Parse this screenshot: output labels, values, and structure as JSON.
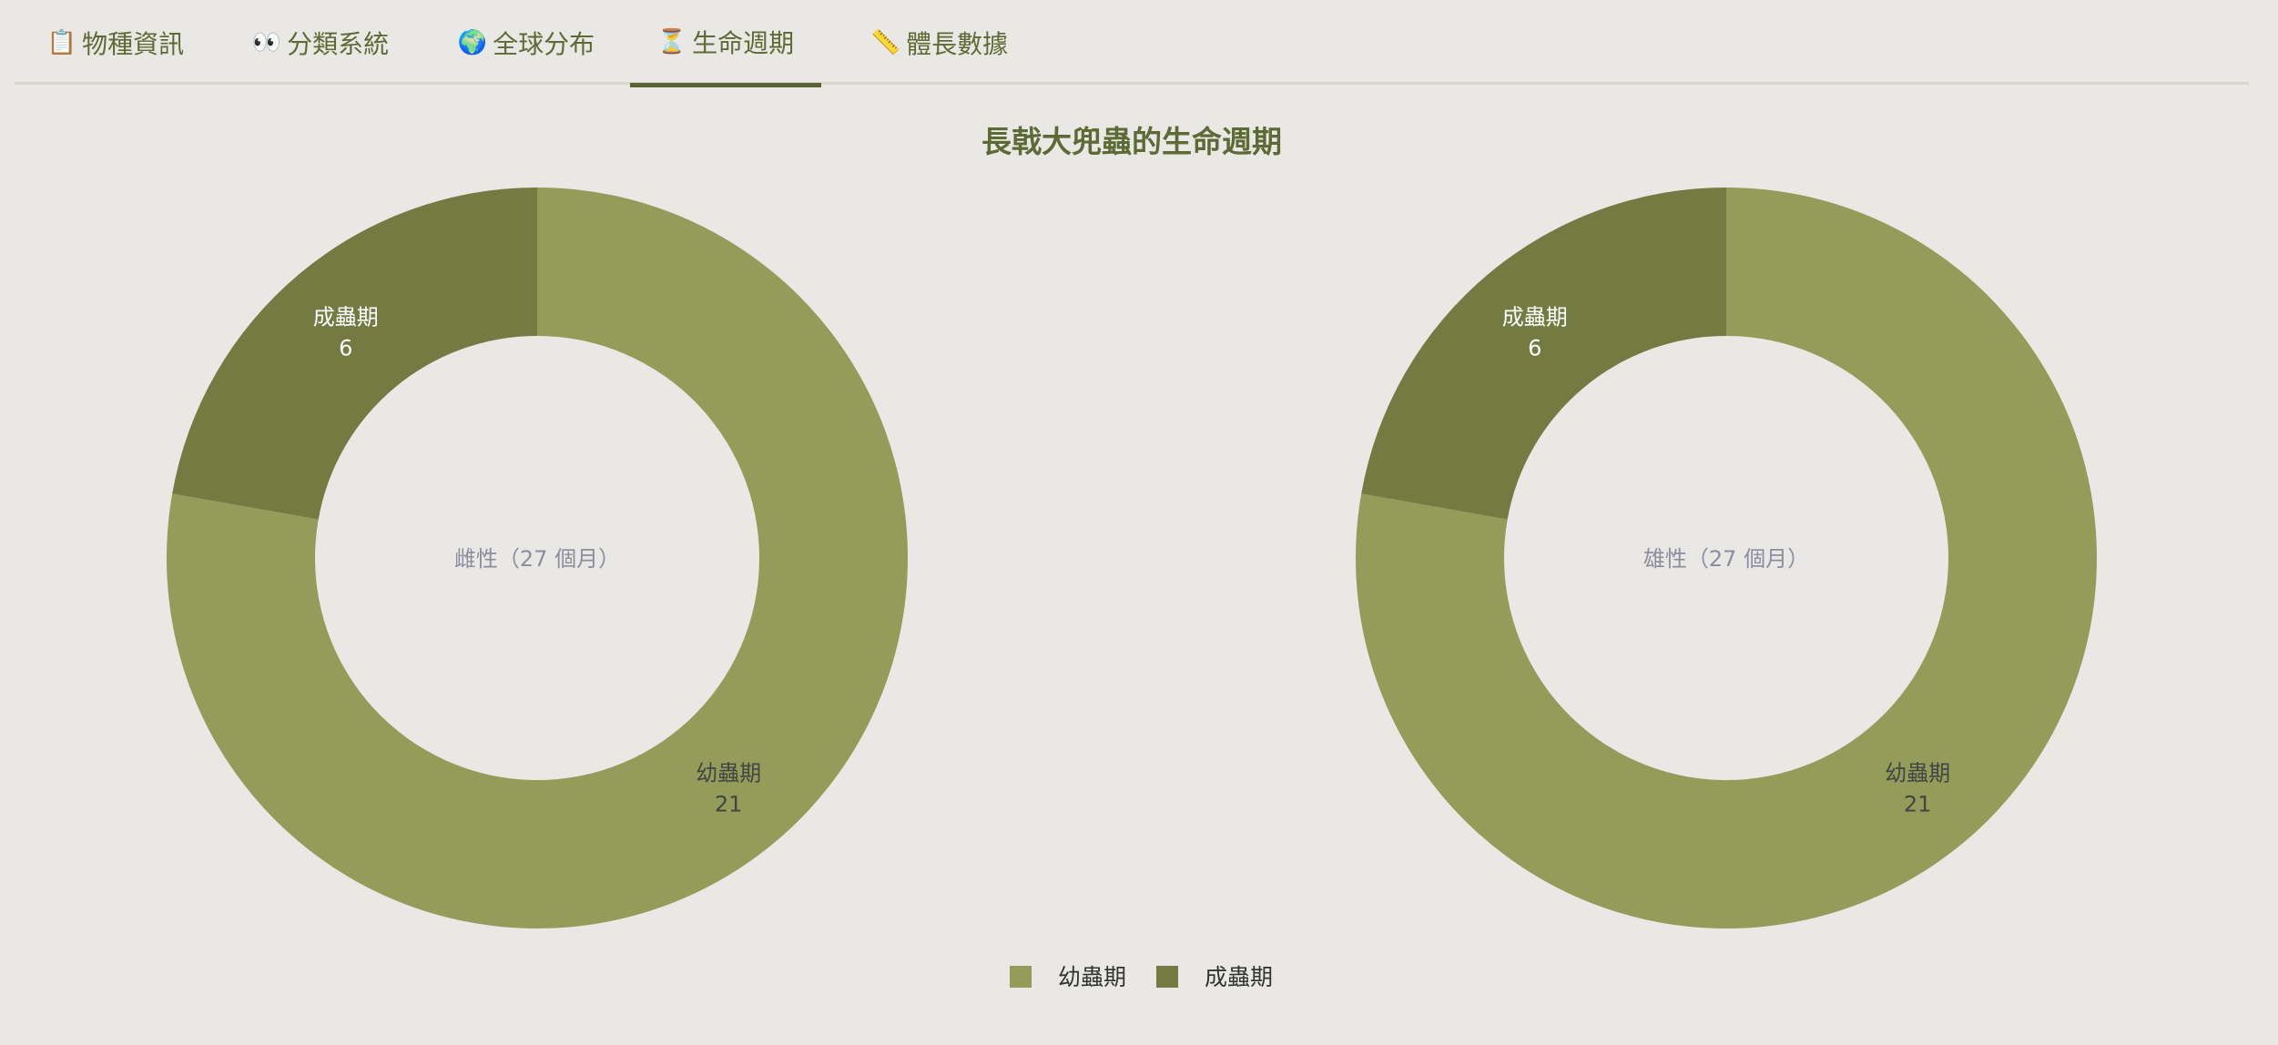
{
  "tabs": [
    {
      "icon": "📋",
      "label": "物種資訊",
      "active": false
    },
    {
      "icon": "👀",
      "label": "分類系統",
      "active": false
    },
    {
      "icon": "🌍",
      "label": "全球分布",
      "active": false
    },
    {
      "icon": "⏳",
      "label": "生命週期",
      "active": true
    },
    {
      "icon": "📏",
      "label": "體長數據",
      "active": false
    }
  ],
  "colors": {
    "larva": "#939c59",
    "adult": "#737b42",
    "accent": "#5e6a35",
    "background": "#e9e8e4"
  },
  "chart_data": {
    "type": "pie",
    "title": "長戟大兜蟲的生命週期",
    "legend": [
      "幼蟲期",
      "成蟲期"
    ],
    "legend_position": "bottom",
    "unit": "個月",
    "charts": [
      {
        "center_label": "雌性（27 個月）",
        "slices": [
          {
            "label": "幼蟲期",
            "value": 21
          },
          {
            "label": "成蟲期",
            "value": 6
          }
        ]
      },
      {
        "center_label": "雄性（27 個月）",
        "slices": [
          {
            "label": "幼蟲期",
            "value": 21
          },
          {
            "label": "成蟲期",
            "value": 6
          }
        ]
      }
    ]
  }
}
